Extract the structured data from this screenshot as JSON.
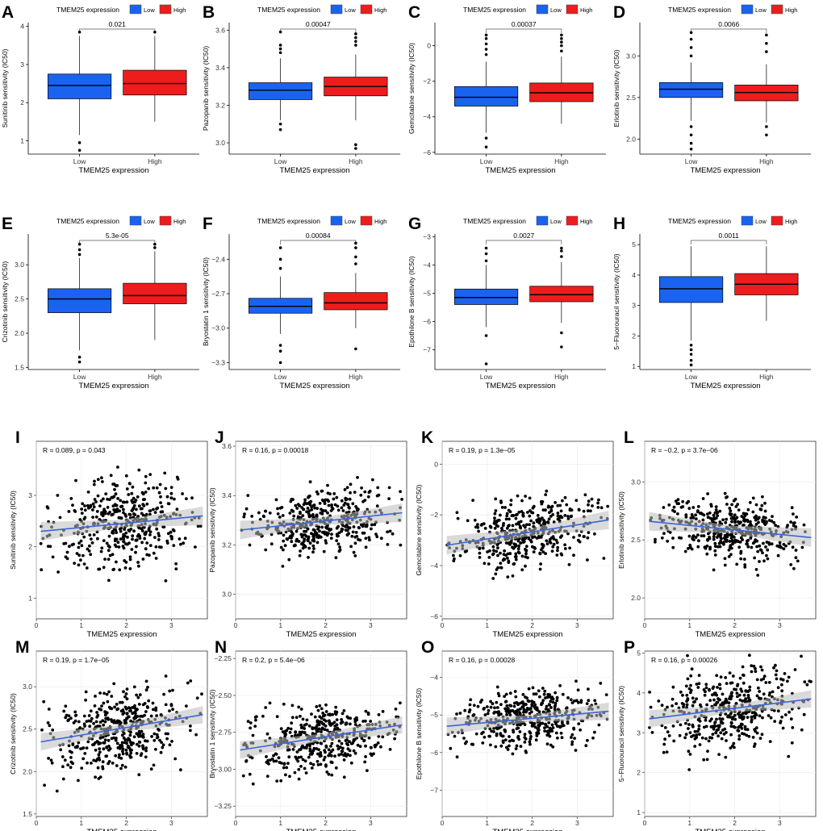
{
  "colors": {
    "low": "#1a63f0",
    "high": "#ee1c1c",
    "trend": "#3a66d8",
    "ribbon": "#bcbcbc",
    "grid": "#ebebeb"
  },
  "chart_data": [
    {
      "type": "box",
      "panel": "A",
      "legend_title": "TMEM25 expression",
      "legend_low": "Low",
      "legend_high": "High",
      "categories": [
        "Low",
        "High"
      ],
      "xlabel": "TMEM25 expression",
      "ylabel": "Sunitinib sensitivity (IC50)",
      "ylim": [
        0.65,
        4.1
      ],
      "yticks": [
        1,
        2,
        3,
        4
      ],
      "pvalue": "0.021",
      "boxes": [
        {
          "q1": 2.1,
          "median": 2.45,
          "q3": 2.75,
          "lo": 1.15,
          "hi": 3.75,
          "out": [
            3.85,
            0.95,
            0.75
          ]
        },
        {
          "q1": 2.2,
          "median": 2.5,
          "q3": 2.85,
          "lo": 1.5,
          "hi": 3.75,
          "out": [
            3.85
          ]
        }
      ]
    },
    {
      "type": "box",
      "panel": "B",
      "legend_title": "TMEM25 expression",
      "legend_low": "Low",
      "legend_high": "High",
      "categories": [
        "Low",
        "High"
      ],
      "xlabel": "TMEM25 expression",
      "ylabel": "Pazopanib sensitivity (IC50)",
      "ylim": [
        2.94,
        3.64
      ],
      "yticks": [
        3.0,
        3.2,
        3.4,
        3.6
      ],
      "pvalue": "0.00047",
      "boxes": [
        {
          "q1": 3.23,
          "median": 3.28,
          "q3": 3.32,
          "lo": 3.12,
          "hi": 3.45,
          "out": [
            3.48,
            3.5,
            3.52,
            3.59,
            3.1,
            3.07
          ]
        },
        {
          "q1": 3.25,
          "median": 3.3,
          "q3": 3.35,
          "lo": 3.12,
          "hi": 3.47,
          "out": [
            3.52,
            3.54,
            3.56,
            3.58,
            2.99,
            2.97
          ]
        }
      ]
    },
    {
      "type": "box",
      "panel": "C",
      "legend_title": "TMEM25 expression",
      "legend_low": "Low",
      "legend_high": "High",
      "categories": [
        "Low",
        "High"
      ],
      "xlabel": "TMEM25 expression",
      "ylabel": "Gemcitabine sensitivity (IC50)",
      "ylim": [
        -6.1,
        1.3
      ],
      "yticks": [
        -6,
        -4,
        -2,
        0
      ],
      "pvalue": "0.00037",
      "boxes": [
        {
          "q1": -3.4,
          "median": -2.9,
          "q3": -2.3,
          "lo": -4.9,
          "hi": -0.9,
          "out": [
            -0.5,
            -0.2,
            0.1,
            0.4,
            0.6,
            -5.2,
            -5.7
          ]
        },
        {
          "q1": -3.15,
          "median": -2.65,
          "q3": -2.1,
          "lo": -4.4,
          "hi": -0.6,
          "out": [
            -0.3,
            0,
            0.2,
            0.4,
            0.6
          ]
        }
      ]
    },
    {
      "type": "box",
      "panel": "D",
      "legend_title": "TMEM25 expression",
      "legend_low": "Low",
      "legend_high": "High",
      "categories": [
        "Low",
        "High"
      ],
      "xlabel": "TMEM25 expression",
      "ylabel": "Erlotinib sensitivity (IC50)",
      "ylim": [
        1.82,
        3.4
      ],
      "yticks": [
        2.0,
        2.5,
        3.0
      ],
      "pvalue": "0.0066",
      "boxes": [
        {
          "q1": 2.5,
          "median": 2.6,
          "q3": 2.68,
          "lo": 2.22,
          "hi": 2.92,
          "out": [
            3.0,
            3.1,
            3.2,
            3.28,
            2.15,
            2.05,
            1.95,
            1.88
          ]
        },
        {
          "q1": 2.46,
          "median": 2.56,
          "q3": 2.65,
          "lo": 2.2,
          "hi": 2.9,
          "out": [
            3.05,
            3.15,
            3.25,
            2.15,
            2.05
          ]
        }
      ]
    },
    {
      "type": "box",
      "panel": "E",
      "legend_title": "TMEM25 expression",
      "legend_low": "Low",
      "legend_high": "High",
      "categories": [
        "Low",
        "High"
      ],
      "xlabel": "TMEM25 expression",
      "ylabel": "Crizotinib sensitivity (IC50)",
      "ylim": [
        1.47,
        3.45
      ],
      "yticks": [
        1.5,
        2.0,
        2.5,
        3.0
      ],
      "pvalue": "5.3e-05",
      "boxes": [
        {
          "q1": 2.3,
          "median": 2.5,
          "q3": 2.65,
          "lo": 1.75,
          "hi": 3.1,
          "out": [
            3.15,
            3.22,
            3.3,
            1.65,
            1.58
          ]
        },
        {
          "q1": 2.43,
          "median": 2.55,
          "q3": 2.73,
          "lo": 1.9,
          "hi": 3.2,
          "out": [
            3.25,
            3.3
          ]
        }
      ]
    },
    {
      "type": "box",
      "panel": "F",
      "legend_title": "TMEM25 expression",
      "legend_low": "Low",
      "legend_high": "High",
      "categories": [
        "Low",
        "High"
      ],
      "xlabel": "TMEM25 expression",
      "ylabel": "Bryostatin 1 sensitivity (IC50)",
      "ylim": [
        -3.36,
        -2.18
      ],
      "yticks": [
        -3.3,
        -3.0,
        -2.7,
        -2.4
      ],
      "pvalue": "0.00084",
      "boxes": [
        {
          "q1": -2.87,
          "median": -2.81,
          "q3": -2.74,
          "lo": -3.05,
          "hi": -2.55,
          "out": [
            -2.48,
            -2.4,
            -2.3,
            -3.15,
            -3.2,
            -3.3
          ]
        },
        {
          "q1": -2.84,
          "median": -2.78,
          "q3": -2.69,
          "lo": -3.0,
          "hi": -2.52,
          "out": [
            -2.44,
            -2.38,
            -2.3,
            -2.26,
            -3.18
          ]
        }
      ]
    },
    {
      "type": "box",
      "panel": "G",
      "legend_title": "TMEM25 expression",
      "legend_low": "Low",
      "legend_high": "High",
      "categories": [
        "Low",
        "High"
      ],
      "xlabel": "TMEM25 expression",
      "ylabel": "Epothilone B sensitivity (IC50)",
      "ylim": [
        -7.7,
        -2.9
      ],
      "yticks": [
        -7,
        -6,
        -5,
        -4,
        -3
      ],
      "pvalue": "0.0027",
      "boxes": [
        {
          "q1": -5.4,
          "median": -5.15,
          "q3": -4.85,
          "lo": -6.2,
          "hi": -4.0,
          "out": [
            -3.85,
            -3.6,
            -3.4,
            -6.5,
            -7.5
          ]
        },
        {
          "q1": -5.3,
          "median": -5.05,
          "q3": -4.75,
          "lo": -6.05,
          "hi": -3.9,
          "out": [
            -3.7,
            -3.5,
            -3.4,
            -6.4,
            -6.9
          ]
        }
      ]
    },
    {
      "type": "box",
      "panel": "H",
      "legend_title": "TMEM25 expression",
      "legend_low": "Low",
      "legend_high": "High",
      "categories": [
        "Low",
        "High"
      ],
      "xlabel": "TMEM25 expression",
      "ylabel": "5−Fluorouracil sensitivity (IC50)",
      "ylim": [
        0.9,
        5.35
      ],
      "yticks": [
        1,
        2,
        3,
        4,
        5
      ],
      "pvalue": "0.0011",
      "boxes": [
        {
          "q1": 3.1,
          "median": 3.55,
          "q3": 3.95,
          "lo": 1.85,
          "hi": 4.95,
          "out": [
            1.7,
            1.55,
            1.4,
            1.2,
            1.05
          ]
        },
        {
          "q1": 3.35,
          "median": 3.7,
          "q3": 4.05,
          "lo": 2.5,
          "hi": 4.95,
          "out": []
        }
      ]
    },
    {
      "type": "scatter",
      "panel": "I",
      "xlabel": "TMEM25 expression",
      "ylabel": "Sunitinib sensitivity (IC50)",
      "xlim": [
        0,
        3.8
      ],
      "ylim": [
        0.6,
        4.05
      ],
      "xticks": [
        0,
        1,
        2,
        3
      ],
      "yticks": [
        1,
        2,
        3
      ],
      "R": "R = 0.089, p = 0.043",
      "fit": [
        [
          0.1,
          2.3
        ],
        [
          3.7,
          2.6
        ]
      ],
      "center": 2.45,
      "sd": 0.55,
      "n": 430,
      "seed": 11
    },
    {
      "type": "scatter",
      "panel": "J",
      "xlabel": "TMEM25 expression",
      "ylabel": "Pazopanib sensitivity (IC50)",
      "xlim": [
        0,
        3.8
      ],
      "ylim": [
        2.9,
        3.62
      ],
      "xticks": [
        0,
        1,
        2,
        3
      ],
      "yticks": [
        3.0,
        3.2,
        3.4,
        3.6
      ],
      "R": "R = 0.16, p = 0.00018",
      "fit": [
        [
          0.1,
          3.26
        ],
        [
          3.7,
          3.33
        ]
      ],
      "center": 3.29,
      "sd": 0.09,
      "n": 430,
      "seed": 23
    },
    {
      "type": "scatter",
      "panel": "K",
      "xlabel": "TMEM25 expression",
      "ylabel": "Gemcitabine sensitivity (IC50)",
      "xlim": [
        0,
        3.8
      ],
      "ylim": [
        -6.1,
        0.9
      ],
      "xticks": [
        0,
        1,
        2,
        3
      ],
      "yticks": [
        -6,
        -4,
        -2,
        0
      ],
      "R": "R = 0.19, p = 1.3e−05",
      "fit": [
        [
          0.1,
          -3.2
        ],
        [
          3.7,
          -2.2
        ]
      ],
      "center": -2.75,
      "sd": 0.95,
      "n": 430,
      "seed": 37
    },
    {
      "type": "scatter",
      "panel": "L",
      "xlabel": "TMEM25 expression",
      "ylabel": "Erlotinib sensitivity (IC50)",
      "xlim": [
        0,
        3.8
      ],
      "ylim": [
        1.82,
        3.35
      ],
      "xticks": [
        0,
        1,
        2,
        3
      ],
      "yticks": [
        2.0,
        2.5,
        3.0
      ],
      "R": "R = −0.2, p = 3.7e−06",
      "fit": [
        [
          0.1,
          2.66
        ],
        [
          3.7,
          2.52
        ]
      ],
      "center": 2.58,
      "sd": 0.17,
      "n": 430,
      "seed": 41
    },
    {
      "type": "scatter",
      "panel": "M",
      "xlabel": "TMEM25 expression",
      "ylabel": "Crizotinib sensitivity (IC50)",
      "xlim": [
        0,
        3.8
      ],
      "ylim": [
        1.47,
        3.42
      ],
      "xticks": [
        0,
        1,
        2,
        3
      ],
      "yticks": [
        1.5,
        2.0,
        2.5,
        3.0
      ],
      "R": "R = 0.19, p = 1.7e−05",
      "fit": [
        [
          0.1,
          2.35
        ],
        [
          3.7,
          2.67
        ]
      ],
      "center": 2.5,
      "sd": 0.32,
      "n": 430,
      "seed": 53
    },
    {
      "type": "scatter",
      "panel": "N",
      "xlabel": "TMEM25 expression",
      "ylabel": "Bryostatin 1 sensitivity (IC50)",
      "xlim": [
        0,
        3.8
      ],
      "ylim": [
        -3.32,
        -2.2
      ],
      "xticks": [
        0,
        1,
        2,
        3
      ],
      "yticks": [
        -3.25,
        -3.0,
        -2.75,
        -2.5,
        -2.25
      ],
      "R": "R = 0.2, p = 5.4e−06",
      "fit": [
        [
          0.1,
          -2.87
        ],
        [
          3.7,
          -2.7
        ]
      ],
      "center": -2.8,
      "sd": 0.15,
      "n": 430,
      "seed": 67
    },
    {
      "type": "scatter",
      "panel": "O",
      "xlabel": "TMEM25 expression",
      "ylabel": "Epothilone B sensitivity (IC50)",
      "xlim": [
        0,
        3.8
      ],
      "ylim": [
        -7.7,
        -3.3
      ],
      "xticks": [
        0,
        1,
        2,
        3
      ],
      "yticks": [
        -7,
        -6,
        -5,
        -4
      ],
      "R": "R = 0.16, p = 0.00028",
      "fit": [
        [
          0.1,
          -5.3
        ],
        [
          3.7,
          -4.9
        ]
      ],
      "center": -5.1,
      "sd": 0.5,
      "n": 430,
      "seed": 71
    },
    {
      "type": "scatter",
      "panel": "P",
      "xlabel": "TMEM25 expression",
      "ylabel": "5−Fluorouracil sensitivity (IC50)",
      "xlim": [
        0,
        3.8
      ],
      "ylim": [
        0.9,
        5.05
      ],
      "xticks": [
        0,
        1,
        2,
        3
      ],
      "yticks": [
        1,
        2,
        3,
        4,
        5
      ],
      "R": "R = 0.16, p = 0.00026",
      "fit": [
        [
          0.1,
          3.35
        ],
        [
          3.7,
          3.85
        ]
      ],
      "center": 3.6,
      "sd": 0.7,
      "n": 430,
      "seed": 83
    }
  ]
}
